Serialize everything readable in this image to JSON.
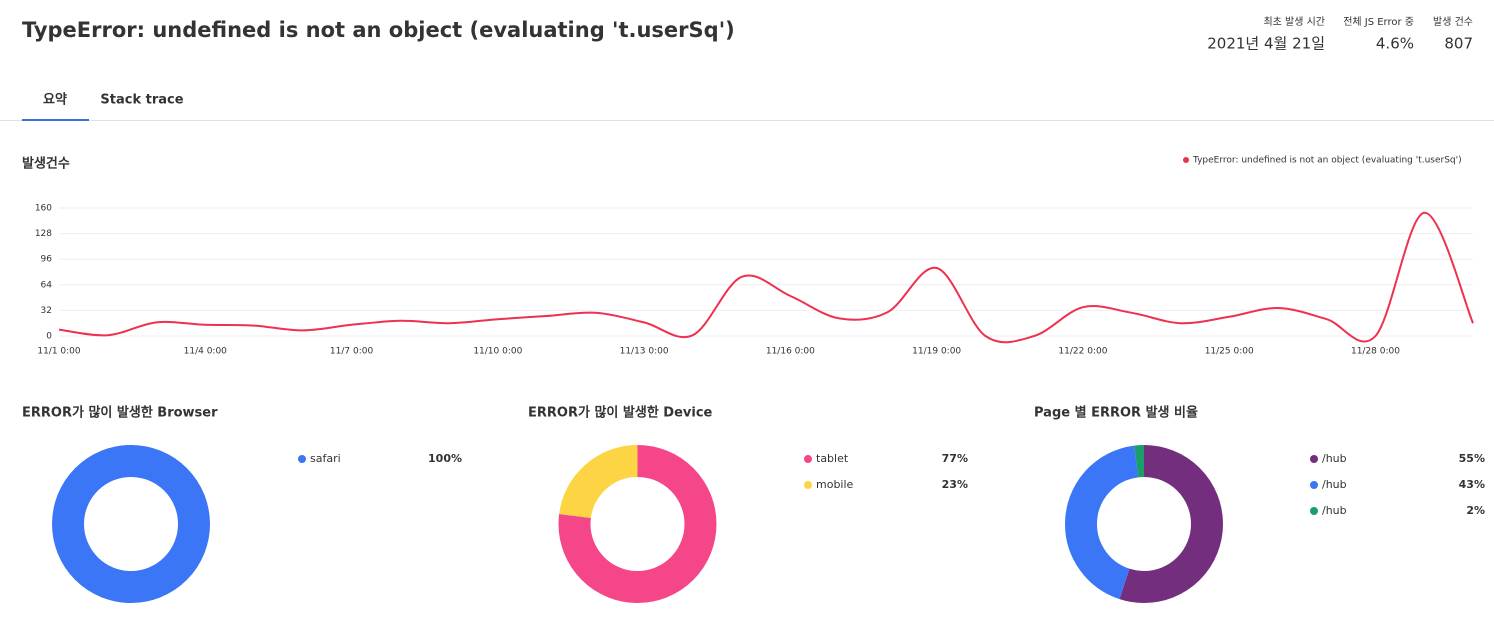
{
  "header": {
    "title": "TypeError: undefined is not an object (evaluating 't.userSq')",
    "stats": [
      {
        "label": "최초 발생 시간",
        "value": "2021년 4월 21일"
      },
      {
        "label": "전체 JS Error 중",
        "value": "4.6%"
      },
      {
        "label": "발생 건수",
        "value": "807"
      }
    ]
  },
  "tabs": [
    "요약",
    "Stack trace"
  ],
  "chart_data": [
    {
      "type": "line",
      "title": "발생건수",
      "categories": [
        "11/1 0:00",
        null,
        null,
        "11/4 0:00",
        null,
        null,
        "11/7 0:00",
        null,
        null,
        "11/10 0:00",
        null,
        null,
        "11/13 0:00",
        null,
        null,
        "11/16 0:00",
        null,
        null,
        "11/19 0:00",
        null,
        null,
        "11/22 0:00",
        null,
        null,
        "11/25 0:00",
        null,
        null,
        "11/28 0:00",
        null,
        null
      ],
      "series": [
        {
          "name": "TypeError: undefined is not an object (evaluating 't.userSq')",
          "color": "#ee3150",
          "values": [
            8,
            1,
            17,
            14,
            13,
            7,
            14,
            19,
            16,
            21,
            25,
            29,
            17,
            1,
            74,
            50,
            22,
            30,
            85,
            0,
            0,
            36,
            29,
            16,
            24,
            35,
            21,
            0,
            154,
            16
          ]
        }
      ],
      "ylim": [
        0,
        160
      ],
      "yticks": [
        0,
        32,
        64,
        96,
        128,
        160
      ],
      "grid": true,
      "legend": "top-right"
    },
    {
      "type": "donut",
      "title": "ERROR가 많이 발생한 Browser",
      "categories": [
        "safari"
      ],
      "colors": [
        "#3b76f6"
      ],
      "values": [
        100
      ],
      "value_labels": [
        "100%"
      ]
    },
    {
      "type": "donut",
      "title": "ERROR가 많이 발생한 Device",
      "categories": [
        "tablet",
        "mobile"
      ],
      "colors": [
        "#f5468a",
        "#fcd444"
      ],
      "values": [
        77,
        23
      ],
      "value_labels": [
        "77%",
        "23%"
      ]
    },
    {
      "type": "donut",
      "title": "Page 별 ERROR 발생 비율",
      "categories": [
        "/hub",
        "/hub",
        "/hub"
      ],
      "colors": [
        "#732f7e",
        "#3b76f6",
        "#1a9e6a"
      ],
      "values": [
        55,
        43,
        2
      ],
      "value_labels": [
        "55%",
        "43%",
        "2%"
      ]
    }
  ]
}
